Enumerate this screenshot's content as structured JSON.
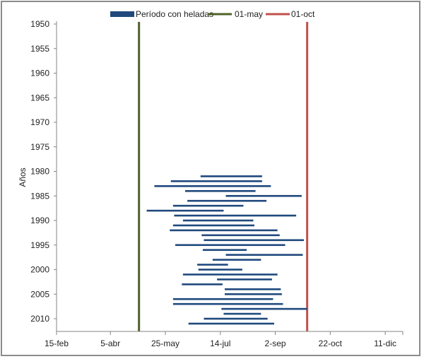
{
  "chart_data": {
    "type": "range-bar",
    "title": "",
    "xlabel": "",
    "ylabel": "Años",
    "x_axis": {
      "unit": "day-of-year",
      "range": [
        46,
        361
      ],
      "ticks": [
        {
          "value": 46,
          "label": "15-feb"
        },
        {
          "value": 95,
          "label": "5-abr"
        },
        {
          "value": 145,
          "label": "25-may"
        },
        {
          "value": 195,
          "label": "14-jul"
        },
        {
          "value": 245,
          "label": "2-sep"
        },
        {
          "value": 295,
          "label": "22-oct"
        },
        {
          "value": 345,
          "label": "11-dic"
        }
      ]
    },
    "y_axis": {
      "range": [
        1950,
        2012
      ],
      "reversed": true,
      "ticks": [
        1950,
        1955,
        1960,
        1965,
        1970,
        1975,
        1980,
        1985,
        1990,
        1995,
        2000,
        2005,
        2010
      ]
    },
    "legend": {
      "position": "top",
      "items": [
        {
          "name": "Período con heladas",
          "color": "#1f497d",
          "kind": "bar"
        },
        {
          "name": "01-may",
          "color": "#4f6228",
          "kind": "line"
        },
        {
          "name": "01-oct",
          "color": "#c0504d",
          "kind": "line"
        }
      ]
    },
    "reference_lines": [
      {
        "name": "01-may",
        "x": 121,
        "color": "#4f6228"
      },
      {
        "name": "01-oct",
        "x": 274,
        "color": "#c0504d"
      }
    ],
    "series": [
      {
        "name": "Período con heladas",
        "color": "#1f497d",
        "ranges": [
          {
            "year": 1981,
            "start": 177,
            "end": 233
          },
          {
            "year": 1982,
            "start": 150,
            "end": 233
          },
          {
            "year": 1983,
            "start": 135,
            "end": 241
          },
          {
            "year": 1984,
            "start": 163,
            "end": 227
          },
          {
            "year": 1985,
            "start": 200,
            "end": 269
          },
          {
            "year": 1986,
            "start": 165,
            "end": 237
          },
          {
            "year": 1987,
            "start": 152,
            "end": 216
          },
          {
            "year": 1988,
            "start": 128,
            "end": 198
          },
          {
            "year": 1989,
            "start": 153,
            "end": 264
          },
          {
            "year": 1990,
            "start": 161,
            "end": 225
          },
          {
            "year": 1991,
            "start": 152,
            "end": 226
          },
          {
            "year": 1992,
            "start": 149,
            "end": 247
          },
          {
            "year": 1993,
            "start": 178,
            "end": 249
          },
          {
            "year": 1994,
            "start": 180,
            "end": 271
          },
          {
            "year": 1995,
            "start": 154,
            "end": 254
          },
          {
            "year": 1996,
            "start": 179,
            "end": 219
          },
          {
            "year": 1997,
            "start": 200,
            "end": 270
          },
          {
            "year": 1998,
            "start": 188,
            "end": 232
          },
          {
            "year": 1999,
            "start": 174,
            "end": 202
          },
          {
            "year": 2000,
            "start": 175,
            "end": 215
          },
          {
            "year": 2001,
            "start": 161,
            "end": 247
          },
          {
            "year": 2002,
            "start": 192,
            "end": 242
          },
          {
            "year": 2003,
            "start": 160,
            "end": 197
          },
          {
            "year": 2004,
            "start": 199,
            "end": 250
          },
          {
            "year": 2005,
            "start": 199,
            "end": 251
          },
          {
            "year": 2006,
            "start": 152,
            "end": 243
          },
          {
            "year": 2007,
            "start": 152,
            "end": 252
          },
          {
            "year": 2008,
            "start": 196,
            "end": 274
          },
          {
            "year": 2009,
            "start": 198,
            "end": 232
          },
          {
            "year": 2010,
            "start": 180,
            "end": 238
          },
          {
            "year": 2011,
            "start": 166,
            "end": 244
          }
        ]
      }
    ]
  }
}
